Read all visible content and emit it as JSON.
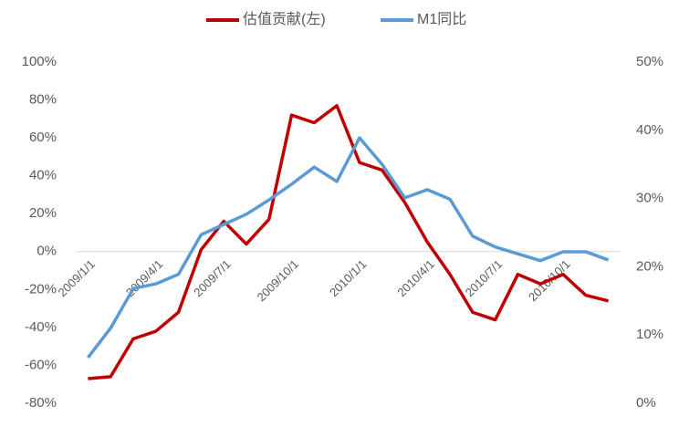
{
  "chart_data": {
    "type": "line",
    "categories": [
      "2009/1/1",
      null,
      null,
      "2009/4/1",
      null,
      null,
      "2009/7/1",
      null,
      null,
      "2009/10/1",
      null,
      null,
      "2010/1/1",
      null,
      null,
      "2010/4/1",
      null,
      null,
      "2010/7/1",
      null,
      null,
      "2010/10/1",
      null,
      null
    ],
    "series": [
      {
        "name": "估值贡献(左)",
        "color": "#c00000",
        "values": [
          -67,
          -66,
          -46,
          -42,
          -32,
          1,
          16,
          4,
          17,
          72,
          68,
          77,
          47,
          43,
          26,
          5,
          -12,
          -32,
          -36,
          -12,
          -17,
          -12,
          -23,
          -26
        ]
      },
      {
        "name": "M1同比",
        "color": "#5b9bd5",
        "axis": "y2",
        "values": [
          6.7,
          11,
          16.8,
          17.5,
          18.9,
          24.7,
          26.2,
          27.7,
          29.8,
          32.1,
          34.6,
          32.5,
          38.9,
          35,
          30.1,
          31.3,
          29.9,
          24.5,
          22.9,
          21.9,
          20.9,
          22.2,
          22.2,
          21
        ]
      }
    ],
    "ylim": [
      -80,
      100
    ],
    "yticks": [
      {
        "value": -80,
        "label": "-80%"
      },
      {
        "value": -60,
        "label": "-60%"
      },
      {
        "value": -40,
        "label": "-40%"
      },
      {
        "value": -20,
        "label": "-20%"
      },
      {
        "value": 0,
        "label": "0%"
      },
      {
        "value": 20,
        "label": "20%"
      },
      {
        "value": 40,
        "label": "40%"
      },
      {
        "value": 60,
        "label": "60%"
      },
      {
        "value": 80,
        "label": "80%"
      },
      {
        "value": 100,
        "label": "100%"
      }
    ],
    "y2lim": [
      0,
      50
    ],
    "y2ticks": [
      {
        "value": 0,
        "label": "0%"
      },
      {
        "value": 10,
        "label": "10%"
      },
      {
        "value": 20,
        "label": "20%"
      },
      {
        "value": 30,
        "label": "30%"
      },
      {
        "value": 40,
        "label": "40%"
      },
      {
        "value": 50,
        "label": "50%"
      }
    ],
    "legend": "top"
  }
}
